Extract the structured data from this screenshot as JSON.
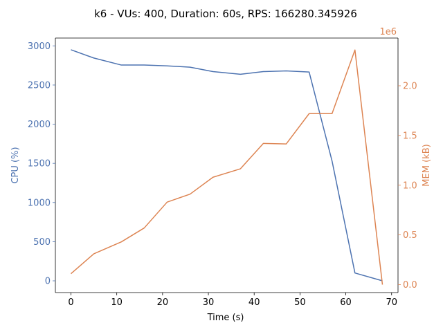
{
  "chart_data": {
    "type": "line",
    "title": "k6 - VUs: 400, Duration: 60s, RPS: 166280.345926",
    "xlabel": "Time (s)",
    "ylabel_left": "CPU (%)",
    "ylabel_right": "MEM (kB)",
    "right_offset_text": "1e6",
    "xlim": [
      -3.4,
      71.4
    ],
    "ylim_left": [
      -150,
      3100
    ],
    "ylim_right": [
      -80000,
      2480000
    ],
    "x_ticks": [
      0,
      10,
      20,
      30,
      40,
      50,
      60,
      70
    ],
    "y_left_ticks": [
      0,
      500,
      1000,
      1500,
      2000,
      2500,
      3000
    ],
    "y_right_ticks": [
      0,
      500000,
      1000000,
      1500000,
      2000000
    ],
    "y_right_tick_labels": [
      "0.0",
      "0.5",
      "1.0",
      "1.5",
      "2.0"
    ],
    "grid": false,
    "series": [
      {
        "axis": "left",
        "color": "#4c72b0",
        "x": [
          0,
          5,
          11,
          16,
          21,
          26,
          31,
          37,
          42,
          47,
          52,
          57,
          62,
          68
        ],
        "values": [
          2950,
          2845,
          2755,
          2755,
          2745,
          2728,
          2672,
          2637,
          2672,
          2680,
          2666,
          1530,
          100,
          0
        ]
      },
      {
        "axis": "right",
        "color": "#dd8452",
        "x": [
          0,
          5,
          11,
          16,
          21,
          26,
          31,
          37,
          42,
          47,
          52,
          57,
          62,
          68
        ],
        "values": [
          110000,
          310000,
          430000,
          570000,
          830000,
          910000,
          1080000,
          1165000,
          1420000,
          1415000,
          1720000,
          1720000,
          2360000,
          0
        ]
      }
    ]
  }
}
